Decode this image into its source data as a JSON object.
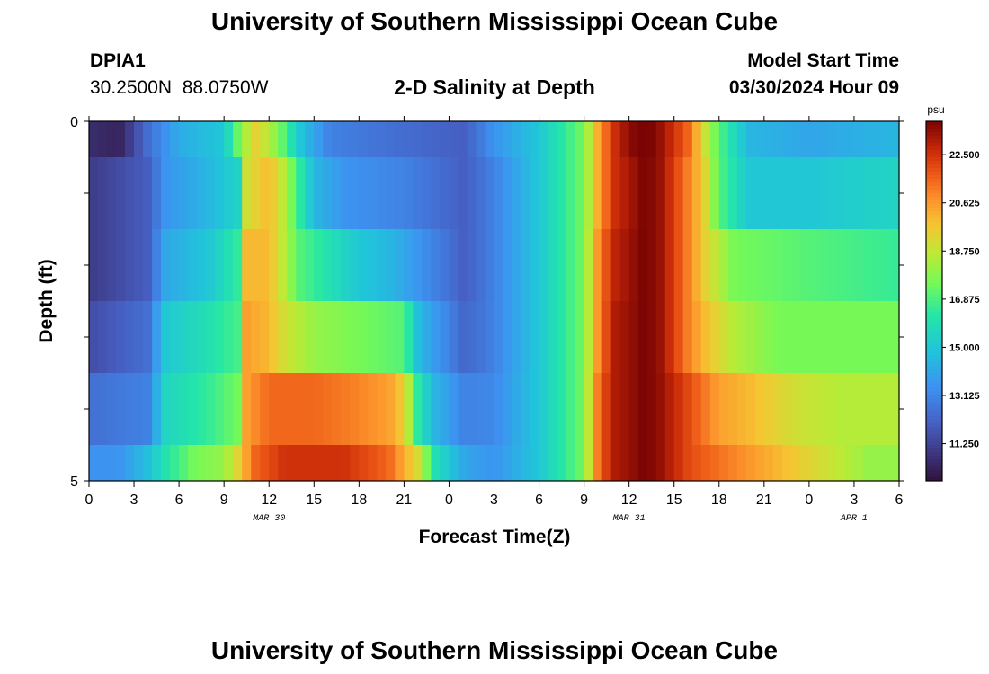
{
  "page": {
    "title": "University of Southern Mississippi Ocean Cube",
    "footer_title": "University of Southern Mississippi Ocean Cube"
  },
  "station": {
    "id": "DPIA1",
    "lat": "30.2500N",
    "lon": "88.0750W"
  },
  "model": {
    "label": "Model Start Time",
    "datetime": "03/30/2024 Hour 09"
  },
  "chart_data": {
    "type": "heatmap",
    "title": "2-D Salinity at Depth",
    "xlabel": "Forecast Time(Z)",
    "ylabel": "Depth (ft)",
    "colorbar_unit": "psu",
    "colorbar_ticks": [
      11.25,
      13.125,
      15.0,
      16.875,
      18.75,
      20.625,
      22.5
    ],
    "colorbar_range": [
      9.8,
      23.8
    ],
    "ylim": [
      0,
      5
    ],
    "y_ticks": [
      0,
      5
    ],
    "x_tick_labels": [
      "0",
      "3",
      "6",
      "9",
      "12",
      "15",
      "18",
      "21",
      "0",
      "3",
      "6",
      "9",
      "12",
      "15",
      "18",
      "21",
      "0",
      "3",
      "6"
    ],
    "x_hours": [
      0,
      54
    ],
    "date_labels": [
      {
        "text": "MAR 30",
        "hour": 12
      },
      {
        "text": "MAR 31",
        "hour": 36
      },
      {
        "text": "APR 1",
        "hour": 51
      }
    ],
    "layer_depths": [
      0,
      0.5,
      1.5,
      2.5,
      3.5,
      4.5,
      5
    ],
    "layers": [
      {
        "name": "layer 1",
        "knots": [
          [
            0,
            10.6
          ],
          [
            2,
            10.3
          ],
          [
            4,
            12.5
          ],
          [
            6,
            14.2
          ],
          [
            9,
            15.0
          ],
          [
            10,
            17.5
          ],
          [
            11,
            19.5
          ],
          [
            12,
            18.5
          ],
          [
            13,
            17.0
          ],
          [
            14,
            15.0
          ],
          [
            16,
            13.0
          ],
          [
            20,
            12.5
          ],
          [
            25,
            12.0
          ],
          [
            27,
            13.5
          ],
          [
            30,
            15.0
          ],
          [
            33,
            17.5
          ],
          [
            34,
            20.5
          ],
          [
            35,
            22.5
          ],
          [
            36,
            23.5
          ],
          [
            37,
            24.0
          ],
          [
            38,
            23.5
          ],
          [
            40,
            21.5
          ],
          [
            41,
            19.0
          ],
          [
            42,
            17.0
          ],
          [
            44,
            14.5
          ],
          [
            48,
            14.0
          ],
          [
            54,
            14.5
          ]
        ]
      },
      {
        "name": "layer 2",
        "knots": [
          [
            0,
            11.0
          ],
          [
            4,
            12.0
          ],
          [
            5,
            13.5
          ],
          [
            8,
            14.5
          ],
          [
            10,
            15.5
          ],
          [
            10.5,
            19.0
          ],
          [
            12,
            20.0
          ],
          [
            13,
            18.5
          ],
          [
            14,
            16.5
          ],
          [
            15,
            14.5
          ],
          [
            17,
            13.5
          ],
          [
            21,
            13.0
          ],
          [
            25,
            12.0
          ],
          [
            27,
            13.0
          ],
          [
            30,
            15.0
          ],
          [
            33,
            17.5
          ],
          [
            34,
            20.5
          ],
          [
            35,
            22.5
          ],
          [
            37,
            23.8
          ],
          [
            38,
            23.5
          ],
          [
            40,
            21.0
          ],
          [
            41,
            19.5
          ],
          [
            42,
            17.0
          ],
          [
            44,
            15.0
          ],
          [
            48,
            15.0
          ],
          [
            54,
            15.5
          ]
        ]
      },
      {
        "name": "layer 3",
        "knots": [
          [
            0,
            11.0
          ],
          [
            4,
            12.0
          ],
          [
            5,
            14.0
          ],
          [
            8,
            15.0
          ],
          [
            10,
            16.5
          ],
          [
            10.5,
            20.0
          ],
          [
            12,
            20.0
          ],
          [
            13,
            18.5
          ],
          [
            14,
            17.0
          ],
          [
            16,
            16.0
          ],
          [
            18,
            15.0
          ],
          [
            20,
            14.5
          ],
          [
            22,
            13.5
          ],
          [
            25,
            12.0
          ],
          [
            27,
            13.0
          ],
          [
            30,
            15.0
          ],
          [
            33,
            17.5
          ],
          [
            34,
            21.0
          ],
          [
            35,
            22.8
          ],
          [
            37,
            23.8
          ],
          [
            38,
            23.5
          ],
          [
            40,
            21.0
          ],
          [
            41,
            19.5
          ],
          [
            43,
            17.5
          ],
          [
            48,
            17.0
          ],
          [
            54,
            16.5
          ]
        ]
      },
      {
        "name": "layer 4",
        "knots": [
          [
            0,
            11.5
          ],
          [
            4,
            12.5
          ],
          [
            5,
            15.0
          ],
          [
            8,
            16.0
          ],
          [
            10,
            16.8
          ],
          [
            10.5,
            20.5
          ],
          [
            12,
            20.0
          ],
          [
            13,
            19.0
          ],
          [
            15,
            18.0
          ],
          [
            18,
            17.5
          ],
          [
            21,
            17.0
          ],
          [
            22,
            14.5
          ],
          [
            24,
            13.0
          ],
          [
            25,
            12.2
          ],
          [
            27,
            13.0
          ],
          [
            30,
            15.0
          ],
          [
            33,
            17.5
          ],
          [
            34,
            21.0
          ],
          [
            35,
            23.0
          ],
          [
            37,
            23.8
          ],
          [
            38,
            23.5
          ],
          [
            40,
            21.0
          ],
          [
            41,
            20.0
          ],
          [
            43,
            18.5
          ],
          [
            46,
            17.5
          ],
          [
            50,
            17.5
          ],
          [
            54,
            17.5
          ]
        ]
      },
      {
        "name": "layer 5",
        "knots": [
          [
            0,
            12.5
          ],
          [
            4,
            13.0
          ],
          [
            5,
            15.5
          ],
          [
            8,
            16.5
          ],
          [
            10,
            17.5
          ],
          [
            10.5,
            20.5
          ],
          [
            12,
            21.5
          ],
          [
            15,
            21.5
          ],
          [
            18,
            21.0
          ],
          [
            20,
            20.5
          ],
          [
            21,
            19.5
          ],
          [
            22,
            16.0
          ],
          [
            23,
            14.5
          ],
          [
            25,
            13.0
          ],
          [
            27,
            13.2
          ],
          [
            30,
            15.0
          ],
          [
            33,
            17.5
          ],
          [
            34,
            21.5
          ],
          [
            35,
            23.0
          ],
          [
            37,
            23.8
          ],
          [
            38,
            23.5
          ],
          [
            40,
            22.0
          ],
          [
            42,
            20.5
          ],
          [
            44,
            20.0
          ],
          [
            47,
            19.0
          ],
          [
            50,
            18.5
          ],
          [
            54,
            18.5
          ]
        ]
      },
      {
        "name": "layer 6",
        "knots": [
          [
            0,
            13.5
          ],
          [
            2,
            13.5
          ],
          [
            4,
            14.8
          ],
          [
            5,
            16.0
          ],
          [
            7,
            17.5
          ],
          [
            9,
            18.0
          ],
          [
            10,
            19.5
          ],
          [
            11,
            21.5
          ],
          [
            13,
            22.5
          ],
          [
            17,
            22.5
          ],
          [
            20,
            21.5
          ],
          [
            22,
            19.0
          ],
          [
            23,
            16.0
          ],
          [
            25,
            14.0
          ],
          [
            27,
            13.5
          ],
          [
            30,
            15.0
          ],
          [
            33,
            17.5
          ],
          [
            34,
            21.5
          ],
          [
            35,
            23.0
          ],
          [
            37,
            23.8
          ],
          [
            38,
            23.5
          ],
          [
            40,
            22.0
          ],
          [
            43,
            21.0
          ],
          [
            46,
            20.0
          ],
          [
            49,
            19.0
          ],
          [
            52,
            18.0
          ],
          [
            54,
            18.0
          ]
        ]
      }
    ]
  }
}
